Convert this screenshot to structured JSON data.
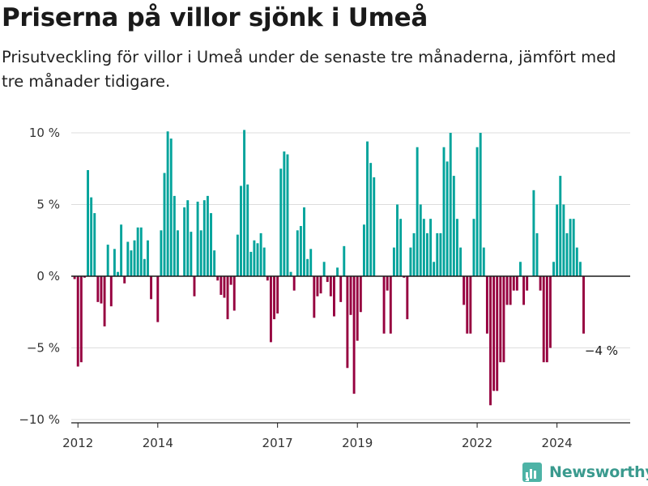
{
  "header": {
    "title": "Priserna på villor sjönk i Umeå",
    "subtitle": "Prisutveckling för villor i Umeå under de senaste tre månaderna, jämfört med tre månader tidigare."
  },
  "brand": {
    "name": "Newsworthy",
    "icon": "newsworthy-logo-icon"
  },
  "colors": {
    "positive": "#00a39b",
    "negative": "#96003f",
    "zero_line": "#1a1a1a",
    "grid": "#dddddd"
  },
  "chart_data": {
    "type": "bar",
    "title": "Priserna på villor sjönk i Umeå",
    "subtitle": "Prisutveckling för villor i Umeå under de senaste tre månaderna, jämfört med tre månader tidigare.",
    "xlabel": "",
    "ylabel": "",
    "x_start": "2011-11",
    "x_end": "2025-11",
    "ylim": [
      -10.5,
      10.5
    ],
    "y_ticks": [
      {
        "value": 10,
        "label": "10 %"
      },
      {
        "value": 5,
        "label": "5 %"
      },
      {
        "value": 0,
        "label": "0 %"
      },
      {
        "value": -5,
        "label": "−5 %"
      },
      {
        "value": -10,
        "label": "−10 %"
      }
    ],
    "x_ticks": [
      {
        "date": "2012-01",
        "label": "2012"
      },
      {
        "date": "2014-01",
        "label": "2014"
      },
      {
        "date": "2017-01",
        "label": "2017"
      },
      {
        "date": "2019-01",
        "label": "2019"
      },
      {
        "date": "2022-01",
        "label": "2022"
      },
      {
        "date": "2024-01",
        "label": "2024"
      }
    ],
    "grid": true,
    "bars": [
      {
        "date": "2011-12",
        "value": -0.2
      },
      {
        "date": "2012-01",
        "value": -6.3
      },
      {
        "date": "2012-02",
        "value": -6.0
      },
      {
        "date": "2012-03",
        "value": -0.1
      },
      {
        "date": "2012-04",
        "value": 7.4
      },
      {
        "date": "2012-05",
        "value": 5.5
      },
      {
        "date": "2012-06",
        "value": 4.4
      },
      {
        "date": "2012-07",
        "value": -1.8
      },
      {
        "date": "2012-08",
        "value": -1.9
      },
      {
        "date": "2012-09",
        "value": -3.5
      },
      {
        "date": "2012-10",
        "value": 2.2
      },
      {
        "date": "2012-11",
        "value": -2.1
      },
      {
        "date": "2012-12",
        "value": 1.9
      },
      {
        "date": "2013-01",
        "value": 0.3
      },
      {
        "date": "2013-02",
        "value": 3.6
      },
      {
        "date": "2013-03",
        "value": -0.5
      },
      {
        "date": "2013-04",
        "value": 2.4
      },
      {
        "date": "2013-05",
        "value": 1.8
      },
      {
        "date": "2013-06",
        "value": 2.5
      },
      {
        "date": "2013-07",
        "value": 3.4
      },
      {
        "date": "2013-08",
        "value": 3.4
      },
      {
        "date": "2013-09",
        "value": 1.2
      },
      {
        "date": "2013-10",
        "value": 2.5
      },
      {
        "date": "2013-11",
        "value": -1.6
      },
      {
        "date": "2013-12",
        "value": 0.0
      },
      {
        "date": "2014-01",
        "value": -3.2
      },
      {
        "date": "2014-02",
        "value": 3.2
      },
      {
        "date": "2014-03",
        "value": 7.2
      },
      {
        "date": "2014-04",
        "value": 10.1
      },
      {
        "date": "2014-05",
        "value": 9.6
      },
      {
        "date": "2014-06",
        "value": 5.6
      },
      {
        "date": "2014-07",
        "value": 3.2
      },
      {
        "date": "2014-08",
        "value": 0.0
      },
      {
        "date": "2014-09",
        "value": 4.8
      },
      {
        "date": "2014-10",
        "value": 5.3
      },
      {
        "date": "2014-11",
        "value": 3.1
      },
      {
        "date": "2014-12",
        "value": -1.4
      },
      {
        "date": "2015-01",
        "value": 5.2
      },
      {
        "date": "2015-02",
        "value": 3.2
      },
      {
        "date": "2015-03",
        "value": 5.3
      },
      {
        "date": "2015-04",
        "value": 5.6
      },
      {
        "date": "2015-05",
        "value": 4.4
      },
      {
        "date": "2015-06",
        "value": 1.8
      },
      {
        "date": "2015-07",
        "value": -0.3
      },
      {
        "date": "2015-08",
        "value": -1.3
      },
      {
        "date": "2015-09",
        "value": -1.5
      },
      {
        "date": "2015-10",
        "value": -3.0
      },
      {
        "date": "2015-11",
        "value": -0.6
      },
      {
        "date": "2015-12",
        "value": -2.4
      },
      {
        "date": "2016-01",
        "value": 2.9
      },
      {
        "date": "2016-02",
        "value": 6.3
      },
      {
        "date": "2016-03",
        "value": 10.2
      },
      {
        "date": "2016-04",
        "value": 6.4
      },
      {
        "date": "2016-05",
        "value": 1.7
      },
      {
        "date": "2016-06",
        "value": 2.5
      },
      {
        "date": "2016-07",
        "value": 2.3
      },
      {
        "date": "2016-08",
        "value": 3.0
      },
      {
        "date": "2016-09",
        "value": 2.0
      },
      {
        "date": "2016-10",
        "value": -0.3
      },
      {
        "date": "2016-11",
        "value": -4.6
      },
      {
        "date": "2016-12",
        "value": -3.0
      },
      {
        "date": "2017-01",
        "value": -2.6
      },
      {
        "date": "2017-02",
        "value": 7.5
      },
      {
        "date": "2017-03",
        "value": 8.7
      },
      {
        "date": "2017-04",
        "value": 8.5
      },
      {
        "date": "2017-05",
        "value": 0.3
      },
      {
        "date": "2017-06",
        "value": -1.0
      },
      {
        "date": "2017-07",
        "value": 3.2
      },
      {
        "date": "2017-08",
        "value": 3.5
      },
      {
        "date": "2017-09",
        "value": 4.8
      },
      {
        "date": "2017-10",
        "value": 1.2
      },
      {
        "date": "2017-11",
        "value": 1.9
      },
      {
        "date": "2017-12",
        "value": -2.9
      },
      {
        "date": "2018-01",
        "value": -1.4
      },
      {
        "date": "2018-02",
        "value": -1.2
      },
      {
        "date": "2018-03",
        "value": 1.0
      },
      {
        "date": "2018-04",
        "value": -0.4
      },
      {
        "date": "2018-05",
        "value": -1.4
      },
      {
        "date": "2018-06",
        "value": -2.8
      },
      {
        "date": "2018-07",
        "value": 0.6
      },
      {
        "date": "2018-08",
        "value": -1.8
      },
      {
        "date": "2018-09",
        "value": 2.1
      },
      {
        "date": "2018-10",
        "value": -6.4
      },
      {
        "date": "2018-11",
        "value": -2.7
      },
      {
        "date": "2018-12",
        "value": -8.2
      },
      {
        "date": "2019-01",
        "value": -4.5
      },
      {
        "date": "2019-02",
        "value": -2.5
      },
      {
        "date": "2019-03",
        "value": 3.6
      },
      {
        "date": "2019-04",
        "value": 9.4
      },
      {
        "date": "2019-05",
        "value": 7.9
      },
      {
        "date": "2019-06",
        "value": 6.9
      },
      {
        "date": "2019-07",
        "value": 0.0
      },
      {
        "date": "2019-08",
        "value": 0.0
      },
      {
        "date": "2019-09",
        "value": -4.0
      },
      {
        "date": "2019-10",
        "value": -1.0
      },
      {
        "date": "2019-11",
        "value": -4.0
      },
      {
        "date": "2019-12",
        "value": 2.0
      },
      {
        "date": "2020-01",
        "value": 5.0
      },
      {
        "date": "2020-02",
        "value": 4.0
      },
      {
        "date": "2020-03",
        "value": -0.1
      },
      {
        "date": "2020-04",
        "value": -3.0
      },
      {
        "date": "2020-05",
        "value": 2.0
      },
      {
        "date": "2020-06",
        "value": 3.0
      },
      {
        "date": "2020-07",
        "value": 9.0
      },
      {
        "date": "2020-08",
        "value": 5.0
      },
      {
        "date": "2020-09",
        "value": 4.0
      },
      {
        "date": "2020-10",
        "value": 3.0
      },
      {
        "date": "2020-11",
        "value": 4.0
      },
      {
        "date": "2020-12",
        "value": 1.0
      },
      {
        "date": "2021-01",
        "value": 3.0
      },
      {
        "date": "2021-02",
        "value": 3.0
      },
      {
        "date": "2021-03",
        "value": 9.0
      },
      {
        "date": "2021-04",
        "value": 8.0
      },
      {
        "date": "2021-05",
        "value": 10.0
      },
      {
        "date": "2021-06",
        "value": 7.0
      },
      {
        "date": "2021-07",
        "value": 4.0
      },
      {
        "date": "2021-08",
        "value": 2.0
      },
      {
        "date": "2021-09",
        "value": -2.0
      },
      {
        "date": "2021-10",
        "value": -4.0
      },
      {
        "date": "2021-11",
        "value": -4.0
      },
      {
        "date": "2021-12",
        "value": 4.0
      },
      {
        "date": "2022-01",
        "value": 9.0
      },
      {
        "date": "2022-02",
        "value": 10.0
      },
      {
        "date": "2022-03",
        "value": 2.0
      },
      {
        "date": "2022-04",
        "value": -4.0
      },
      {
        "date": "2022-05",
        "value": -9.0
      },
      {
        "date": "2022-06",
        "value": -8.0
      },
      {
        "date": "2022-07",
        "value": -8.0
      },
      {
        "date": "2022-08",
        "value": -6.0
      },
      {
        "date": "2022-09",
        "value": -6.0
      },
      {
        "date": "2022-10",
        "value": -2.0
      },
      {
        "date": "2022-11",
        "value": -2.0
      },
      {
        "date": "2022-12",
        "value": -1.0
      },
      {
        "date": "2023-01",
        "value": -1.0
      },
      {
        "date": "2023-02",
        "value": 1.0
      },
      {
        "date": "2023-03",
        "value": -2.0
      },
      {
        "date": "2023-04",
        "value": -1.0
      },
      {
        "date": "2023-05",
        "value": 0.0
      },
      {
        "date": "2023-06",
        "value": 6.0
      },
      {
        "date": "2023-07",
        "value": 3.0
      },
      {
        "date": "2023-08",
        "value": -1.0
      },
      {
        "date": "2023-09",
        "value": -6.0
      },
      {
        "date": "2023-10",
        "value": -6.0
      },
      {
        "date": "2023-11",
        "value": -5.0
      },
      {
        "date": "2023-12",
        "value": 1.0
      },
      {
        "date": "2024-01",
        "value": 5.0
      },
      {
        "date": "2024-02",
        "value": 7.0
      },
      {
        "date": "2024-03",
        "value": 5.0
      },
      {
        "date": "2024-04",
        "value": 3.0
      },
      {
        "date": "2024-05",
        "value": 4.0
      },
      {
        "date": "2024-06",
        "value": 4.0
      },
      {
        "date": "2024-07",
        "value": 2.0
      },
      {
        "date": "2024-08",
        "value": 1.0
      },
      {
        "date": "2024-09",
        "value": -4.0
      }
    ],
    "annotations": [
      {
        "date": "2024-09",
        "value": -4.0,
        "text": "−4 %"
      }
    ]
  }
}
